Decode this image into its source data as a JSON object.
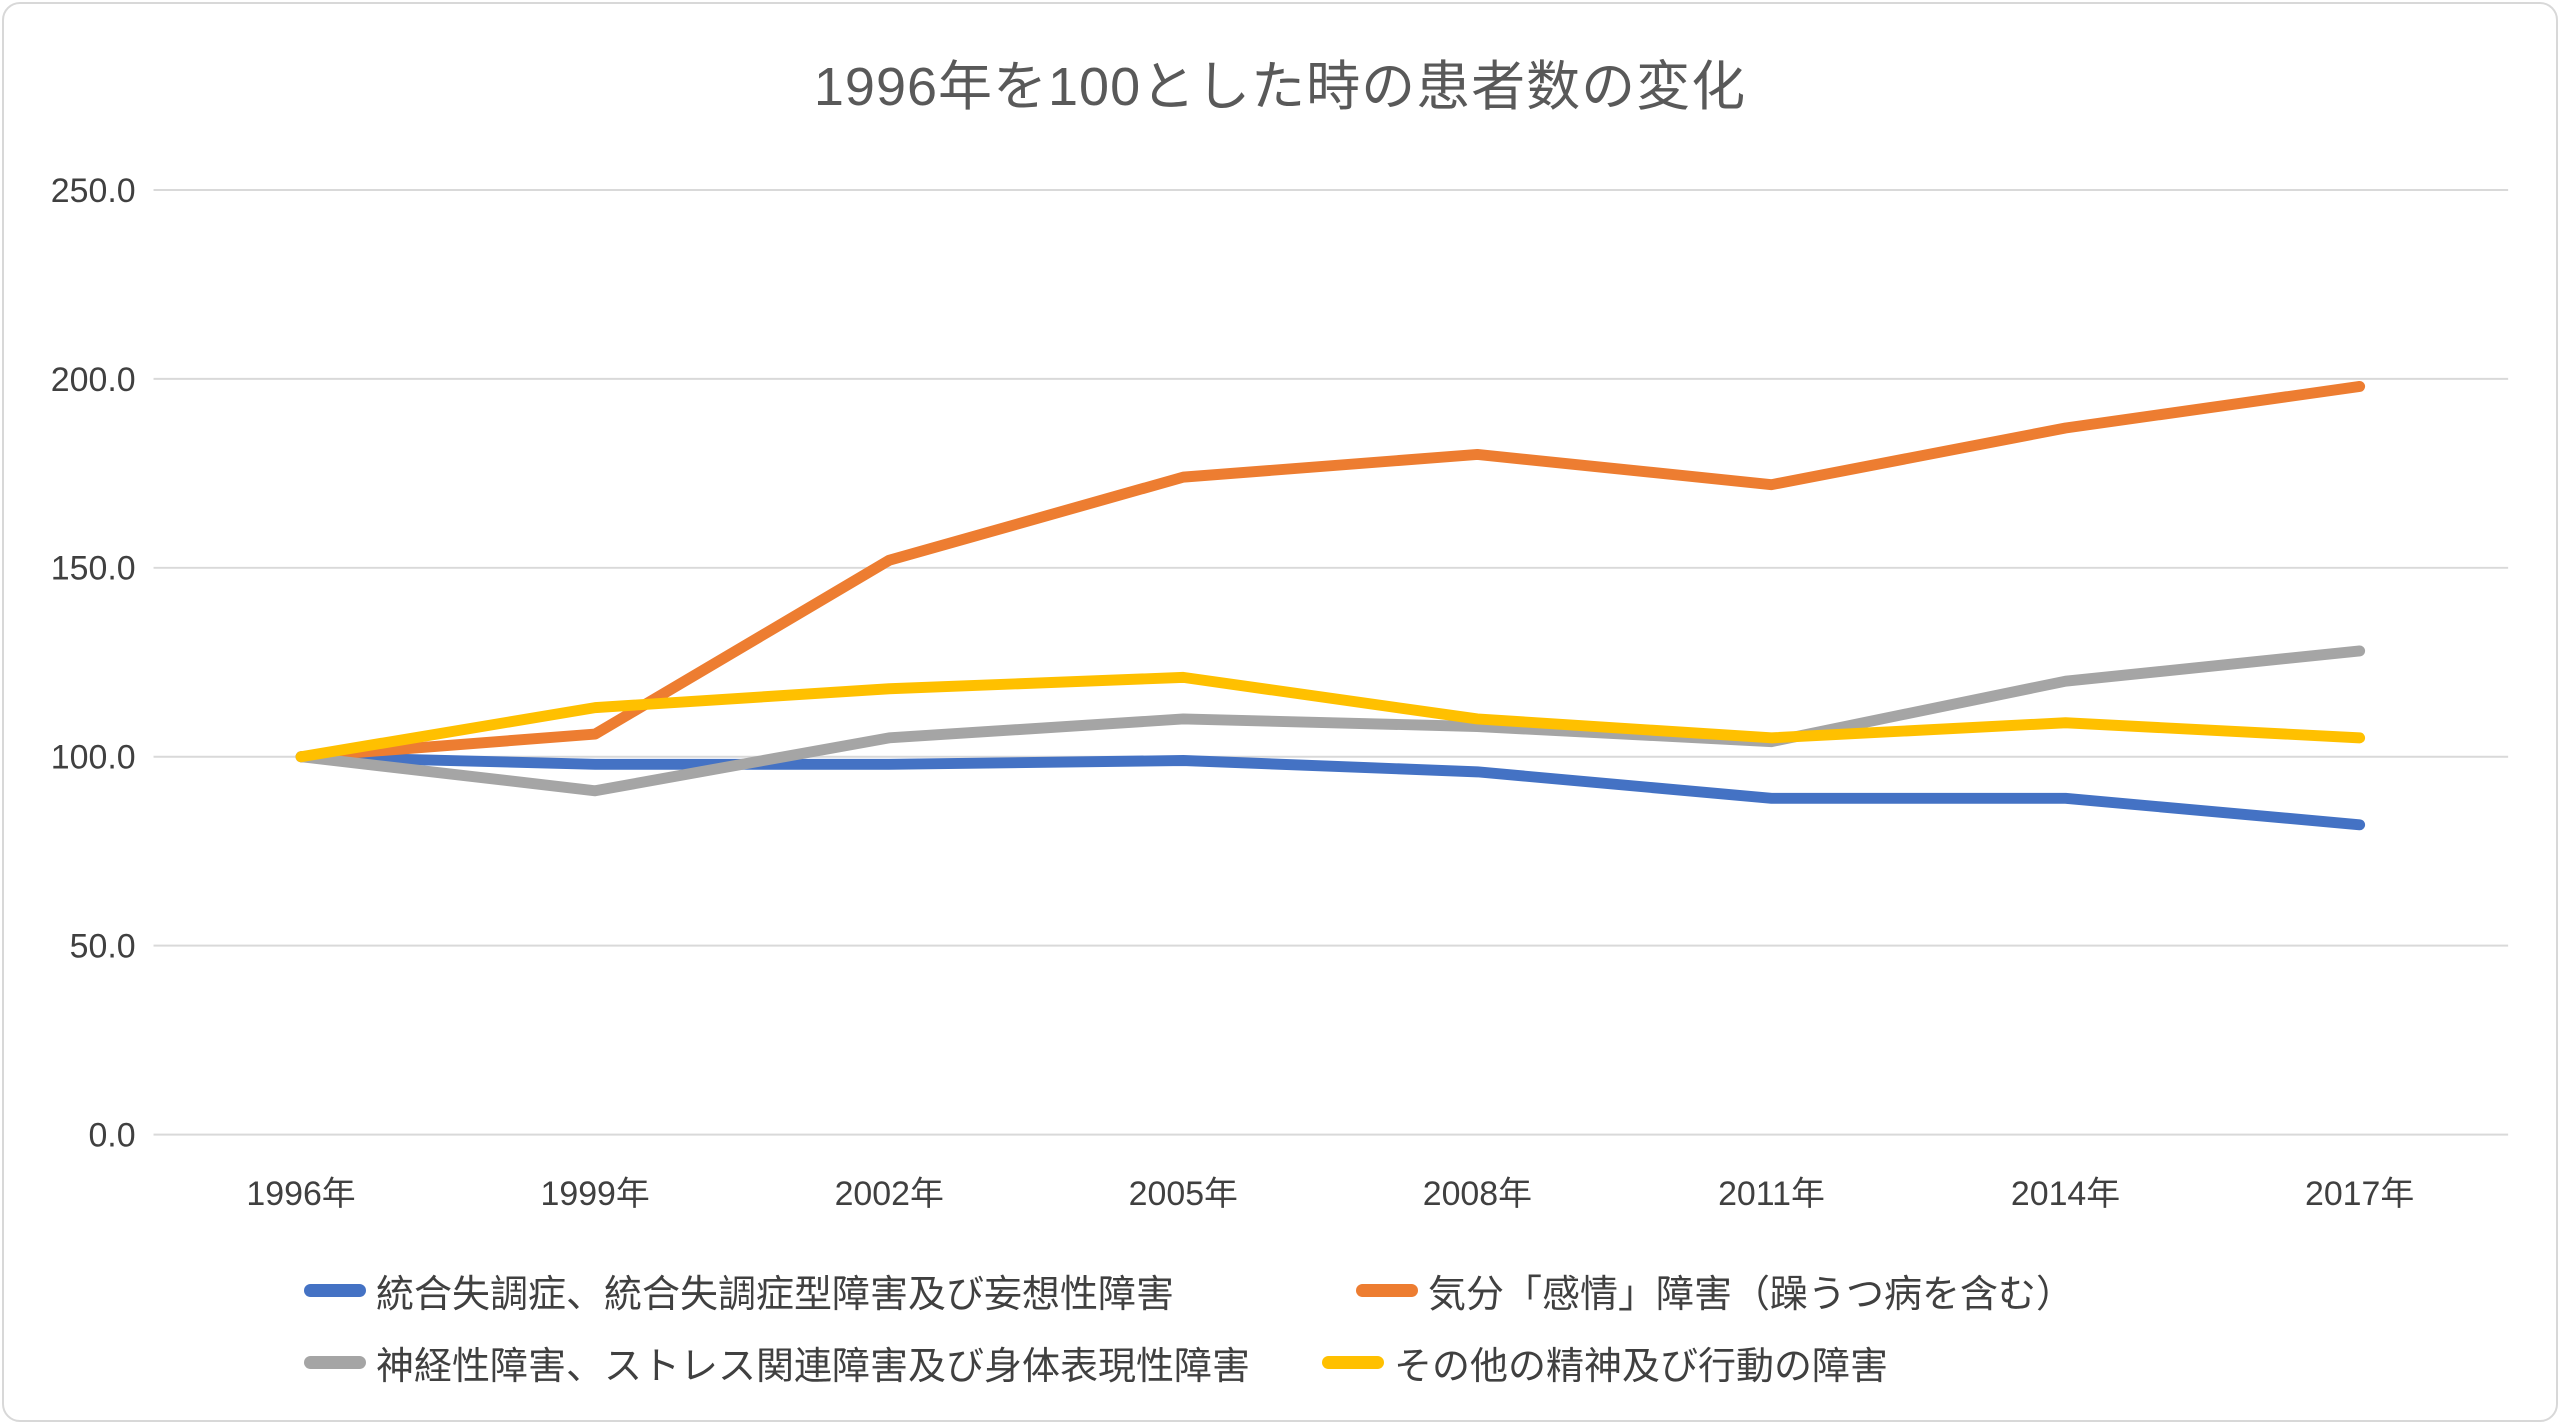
{
  "chart_data": {
    "type": "line",
    "title": "1996年を100とした時の患者数の変化",
    "categories": [
      "1996年",
      "1999年",
      "2002年",
      "2005年",
      "2008年",
      "2011年",
      "2014年",
      "2017年"
    ],
    "series": [
      {
        "name": "統合失調症、統合失調症型障害及び妄想性障害",
        "color": "#4472C4",
        "values": [
          100,
          98,
          98,
          99,
          96,
          89,
          89,
          82
        ]
      },
      {
        "name": "気分「感情」障害（躁うつ病を含む）",
        "color": "#ED7D31",
        "values": [
          100,
          106,
          152,
          174,
          180,
          172,
          187,
          198
        ]
      },
      {
        "name": "神経性障害、ストレス関連障害及び身体表現性障害",
        "color": "#A5A5A5",
        "values": [
          100,
          91,
          105,
          110,
          108,
          104,
          120,
          128
        ]
      },
      {
        "name": "その他の精神及び行動の障害",
        "color": "#FFC000",
        "values": [
          100,
          113,
          118,
          121,
          110,
          105,
          109,
          105
        ]
      }
    ],
    "y_ticks": [
      "250.0",
      "200.0",
      "150.0",
      "100.0",
      "50.0",
      "0.0"
    ],
    "ylim": [
      0,
      250
    ],
    "y_step": 50,
    "grid": true,
    "legend_position": "bottom",
    "baseline_note": "1996 = 100",
    "colors": {
      "gridline": "#d9d9d9",
      "title_text": "#595959",
      "tick_text": "#404040",
      "legend_text": "#404040",
      "frame_border": "#d8d8d8"
    }
  }
}
